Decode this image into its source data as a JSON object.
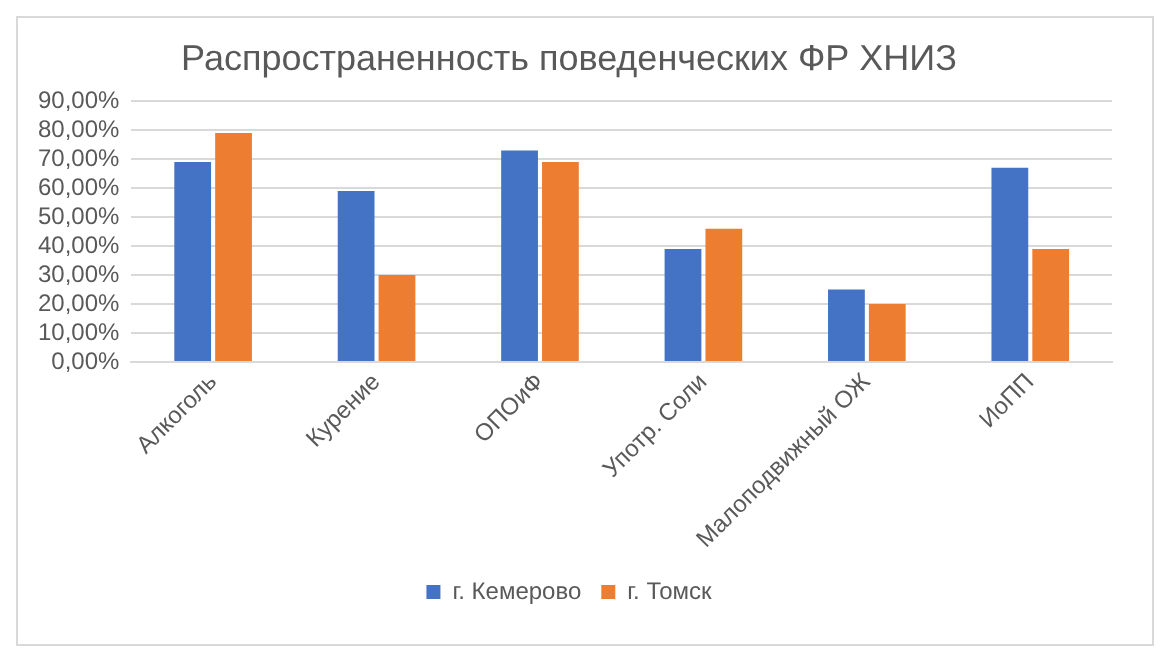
{
  "chart_data": {
    "type": "bar",
    "title": "Распространенность поведенческих ФР ХНИЗ",
    "categories": [
      "Алкоголь",
      "Курение",
      "ОПОиФ",
      "Употр. Соли",
      "Малоподвижный ОЖ",
      "ИоПП"
    ],
    "series": [
      {
        "name": "г. Кемерово",
        "color": "#4472c4",
        "values": [
          69,
          59,
          73,
          39,
          25,
          67
        ]
      },
      {
        "name": "г. Томск",
        "color": "#ed7d31",
        "values": [
          79,
          30,
          69,
          46,
          20,
          39
        ]
      }
    ],
    "ylim": [
      0,
      90
    ],
    "yticks": [
      {
        "value": 0,
        "label": "0,00%"
      },
      {
        "value": 10,
        "label": "10,00%"
      },
      {
        "value": 20,
        "label": "20,00%"
      },
      {
        "value": 30,
        "label": "30,00%"
      },
      {
        "value": 40,
        "label": "40,00%"
      },
      {
        "value": 50,
        "label": "50,00%"
      },
      {
        "value": 60,
        "label": "60,00%"
      },
      {
        "value": 70,
        "label": "70,00%"
      },
      {
        "value": 80,
        "label": "80,00%"
      },
      {
        "value": 90,
        "label": "90,00%"
      }
    ],
    "grid": "y",
    "legend": "bottom"
  }
}
